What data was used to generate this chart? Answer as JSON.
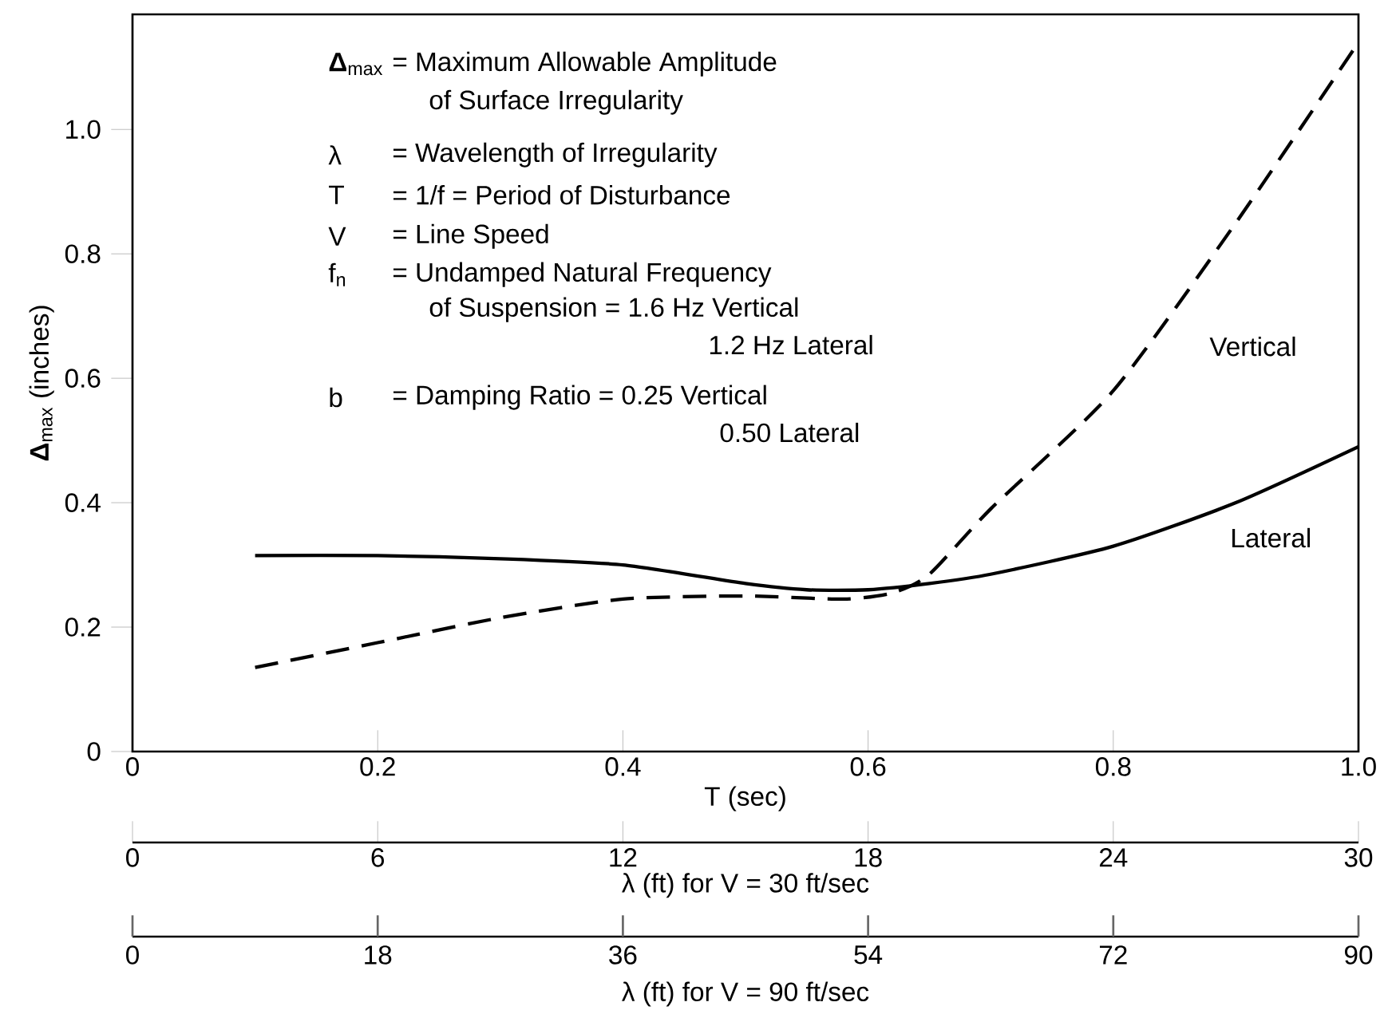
{
  "chart_data": {
    "type": "line",
    "xlabel": "T (sec)",
    "ylabel": "**Δ**$_{max}$ (inches)",
    "x2label": "λ (ft) for V = 30 ft/sec",
    "xlim": [
      0,
      1
    ],
    "xticks": [
      0,
      0.2,
      0.4,
      0.6,
      0.8,
      {
        "value": 1,
        "label": "1.0"
      }
    ],
    "ylim": [
      0,
      1.185
    ],
    "yticks": [
      0,
      0.2,
      0.4,
      0.6,
      0.8,
      {
        "value": 1,
        "label": "1.0"
      }
    ],
    "x2lim": [
      0,
      30
    ],
    "x2ticks": [
      0,
      6,
      12,
      18,
      24,
      30
    ],
    "legend": false,
    "grid": false,
    "series": [
      {
        "name": "Vertical",
        "color": "#000000",
        "line_style": "dashed",
        "x": [
          0.1,
          0.2,
          0.3,
          0.4,
          0.5,
          0.58,
          0.62,
          0.65,
          0.7,
          0.8,
          0.9,
          1.0
        ],
        "values": [
          0.135,
          0.175,
          0.215,
          0.245,
          0.25,
          0.245,
          0.255,
          0.285,
          0.39,
          0.58,
          0.85,
          1.14
        ]
      },
      {
        "name": "Lateral",
        "color": "#000000",
        "line_style": "solid",
        "x": [
          0.1,
          0.2,
          0.3,
          0.4,
          0.5,
          0.55,
          0.6,
          0.65,
          0.7,
          0.8,
          0.9,
          1.0
        ],
        "values": [
          0.315,
          0.315,
          0.31,
          0.3,
          0.27,
          0.26,
          0.26,
          0.27,
          0.285,
          0.33,
          0.4,
          0.49
        ]
      }
    ],
    "annotations": [
      "**Δ**$_{max}$",
      "= Maximum Allowable Amplitude",
      "of Surface Irregularity",
      "λ",
      "= Wavelength of Irregularity",
      "T",
      "= 1/f = Period of Disturbance",
      "V",
      "= Line Speed",
      "f$_{n}$",
      "= Undamped Natural Frequency",
      "of Suspension = 1.6 Hz Vertical",
      "1.2 Hz Lateral",
      "b",
      "= Damping Ratio = 0.25 Vertical",
      "0.50 Lateral",
      "0",
      "18",
      "36",
      "54",
      "72",
      "90",
      "λ (ft) for V = 90 ft/sec"
    ]
  }
}
